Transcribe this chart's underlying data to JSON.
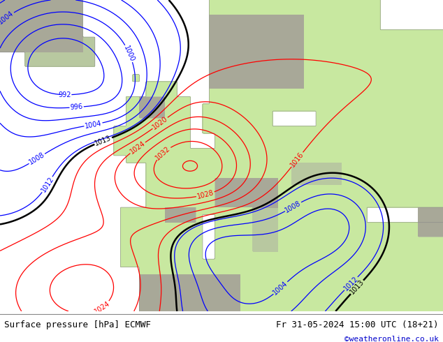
{
  "title_left": "Surface pressure [hPa] ECMWF",
  "title_right": "Fr 31-05-2024 15:00 UTC (18+21)",
  "credit": "©weatheronline.co.uk",
  "credit_color": "#0000cc",
  "bg_color": "#ffffff",
  "map_land_color": "#c8e8a0",
  "map_sea_color": "#ddeef8",
  "map_mountain_color": "#b0b8a0",
  "map_border_color": "#888888",
  "contour_low_color": "#0000ff",
  "contour_high_color": "#ff0000",
  "contour_black_color": "#000000",
  "label_fontsize": 7,
  "title_fontsize": 9,
  "credit_fontsize": 8,
  "figsize": [
    6.34,
    4.9
  ],
  "dpi": 100
}
